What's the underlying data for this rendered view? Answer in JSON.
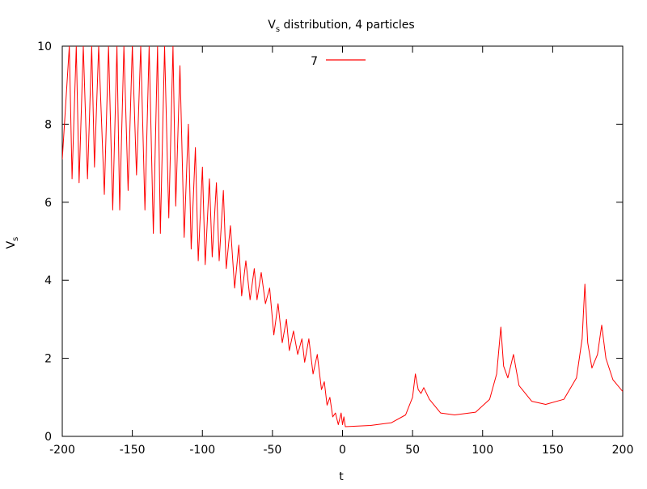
{
  "chart_data": {
    "type": "line",
    "title": {
      "main": "V",
      "sub": "s",
      "rest": " distribution, 4 particles"
    },
    "xlabel": "t",
    "ylabel": {
      "main": "V",
      "sub": "s"
    },
    "xlim": [
      -200,
      200
    ],
    "ylim": [
      0,
      10
    ],
    "x_ticks": [
      -200,
      -150,
      -100,
      -50,
      0,
      50,
      100,
      150,
      200
    ],
    "y_ticks": [
      0,
      2,
      4,
      6,
      8,
      10
    ],
    "grid": false,
    "legend": {
      "position": "top-center",
      "entries": [
        "7"
      ]
    },
    "colors": {
      "series": "#ff0000",
      "axes": "#000000"
    },
    "series": [
      {
        "name": "7",
        "description_points": {
          "oscillating_region": [
            [
              -200,
              7.1
            ],
            [
              -195,
              10.0
            ],
            [
              -193,
              6.6
            ],
            [
              -190,
              10.0
            ],
            [
              -188,
              6.5
            ],
            [
              -185,
              10.0
            ],
            [
              -182,
              6.6
            ],
            [
              -179,
              10.0
            ],
            [
              -177,
              6.9
            ],
            [
              -174,
              10.0
            ],
            [
              -170,
              6.2
            ],
            [
              -167,
              10.0
            ],
            [
              -164,
              5.8
            ],
            [
              -161,
              10.0
            ],
            [
              -159,
              5.8
            ],
            [
              -156,
              10.0
            ],
            [
              -153,
              6.3
            ],
            [
              -150,
              10.0
            ],
            [
              -147,
              6.7
            ],
            [
              -144,
              10.0
            ],
            [
              -141,
              5.8
            ],
            [
              -138,
              10.0
            ],
            [
              -135,
              5.2
            ],
            [
              -132,
              10.0
            ],
            [
              -130,
              5.2
            ],
            [
              -127,
              10.0
            ],
            [
              -124,
              5.6
            ],
            [
              -121,
              10.0
            ],
            [
              -119,
              5.9
            ],
            [
              -116,
              9.5
            ],
            [
              -113,
              5.1
            ],
            [
              -110,
              8.0
            ],
            [
              -108,
              4.8
            ],
            [
              -105,
              7.4
            ],
            [
              -103,
              4.5
            ],
            [
              -100,
              6.9
            ],
            [
              -98,
              4.4
            ],
            [
              -95,
              6.6
            ],
            [
              -93,
              4.6
            ],
            [
              -90,
              6.5
            ],
            [
              -88,
              4.5
            ],
            [
              -85,
              6.3
            ],
            [
              -83,
              4.3
            ],
            [
              -80,
              5.4
            ],
            [
              -77,
              3.8
            ],
            [
              -74,
              4.9
            ],
            [
              -72,
              3.6
            ],
            [
              -69,
              4.5
            ],
            [
              -66,
              3.5
            ],
            [
              -63,
              4.3
            ],
            [
              -61,
              3.5
            ],
            [
              -58,
              4.2
            ],
            [
              -55,
              3.4
            ],
            [
              -52,
              3.8
            ],
            [
              -49,
              2.6
            ],
            [
              -46,
              3.4
            ],
            [
              -43,
              2.4
            ],
            [
              -40,
              3.0
            ],
            [
              -38,
              2.2
            ],
            [
              -35,
              2.7
            ],
            [
              -32,
              2.1
            ],
            [
              -29,
              2.5
            ],
            [
              -27,
              1.9
            ],
            [
              -24,
              2.5
            ],
            [
              -21,
              1.6
            ],
            [
              -18,
              2.1
            ],
            [
              -15,
              1.2
            ],
            [
              -13,
              1.4
            ],
            [
              -11,
              0.8
            ],
            [
              -9,
              1.0
            ],
            [
              -7,
              0.5
            ],
            [
              -5,
              0.6
            ],
            [
              -3,
              0.3
            ],
            [
              -1,
              0.6
            ],
            [
              0,
              0.3
            ],
            [
              1,
              0.5
            ],
            [
              2,
              0.25
            ]
          ],
          "resonance_region": [
            [
              2,
              0.25
            ],
            [
              20,
              0.28
            ],
            [
              35,
              0.35
            ],
            [
              45,
              0.55
            ],
            [
              50,
              1.0
            ],
            [
              52,
              1.6
            ],
            [
              54,
              1.2
            ],
            [
              56,
              1.1
            ],
            [
              58,
              1.25
            ],
            [
              62,
              0.95
            ],
            [
              70,
              0.6
            ],
            [
              80,
              0.55
            ],
            [
              95,
              0.62
            ],
            [
              105,
              0.95
            ],
            [
              110,
              1.6
            ],
            [
              113,
              2.8
            ],
            [
              115,
              1.8
            ],
            [
              118,
              1.5
            ],
            [
              122,
              2.1
            ],
            [
              126,
              1.3
            ],
            [
              135,
              0.9
            ],
            [
              145,
              0.82
            ],
            [
              158,
              0.95
            ],
            [
              167,
              1.5
            ],
            [
              171,
              2.5
            ],
            [
              173,
              3.9
            ],
            [
              175,
              2.4
            ],
            [
              178,
              1.75
            ],
            [
              182,
              2.1
            ],
            [
              185,
              2.85
            ],
            [
              188,
              2.0
            ],
            [
              193,
              1.45
            ],
            [
              200,
              1.15
            ]
          ]
        }
      }
    ]
  }
}
